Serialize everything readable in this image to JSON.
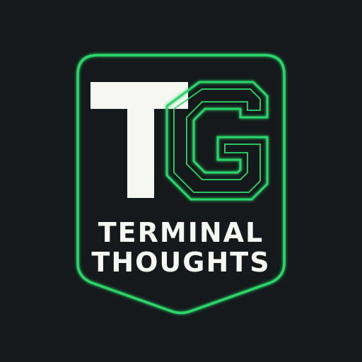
{
  "logo": {
    "monogram_letters": "TG",
    "line1": "TERMINAL",
    "line2": "THOUGHTS"
  },
  "colors": {
    "background": "#15191b",
    "accent_green": "#2bd66a",
    "letter_white": "#f6f6f2"
  },
  "icons": [
    "shield-badge-icon",
    "tg-monogram-icon"
  ]
}
